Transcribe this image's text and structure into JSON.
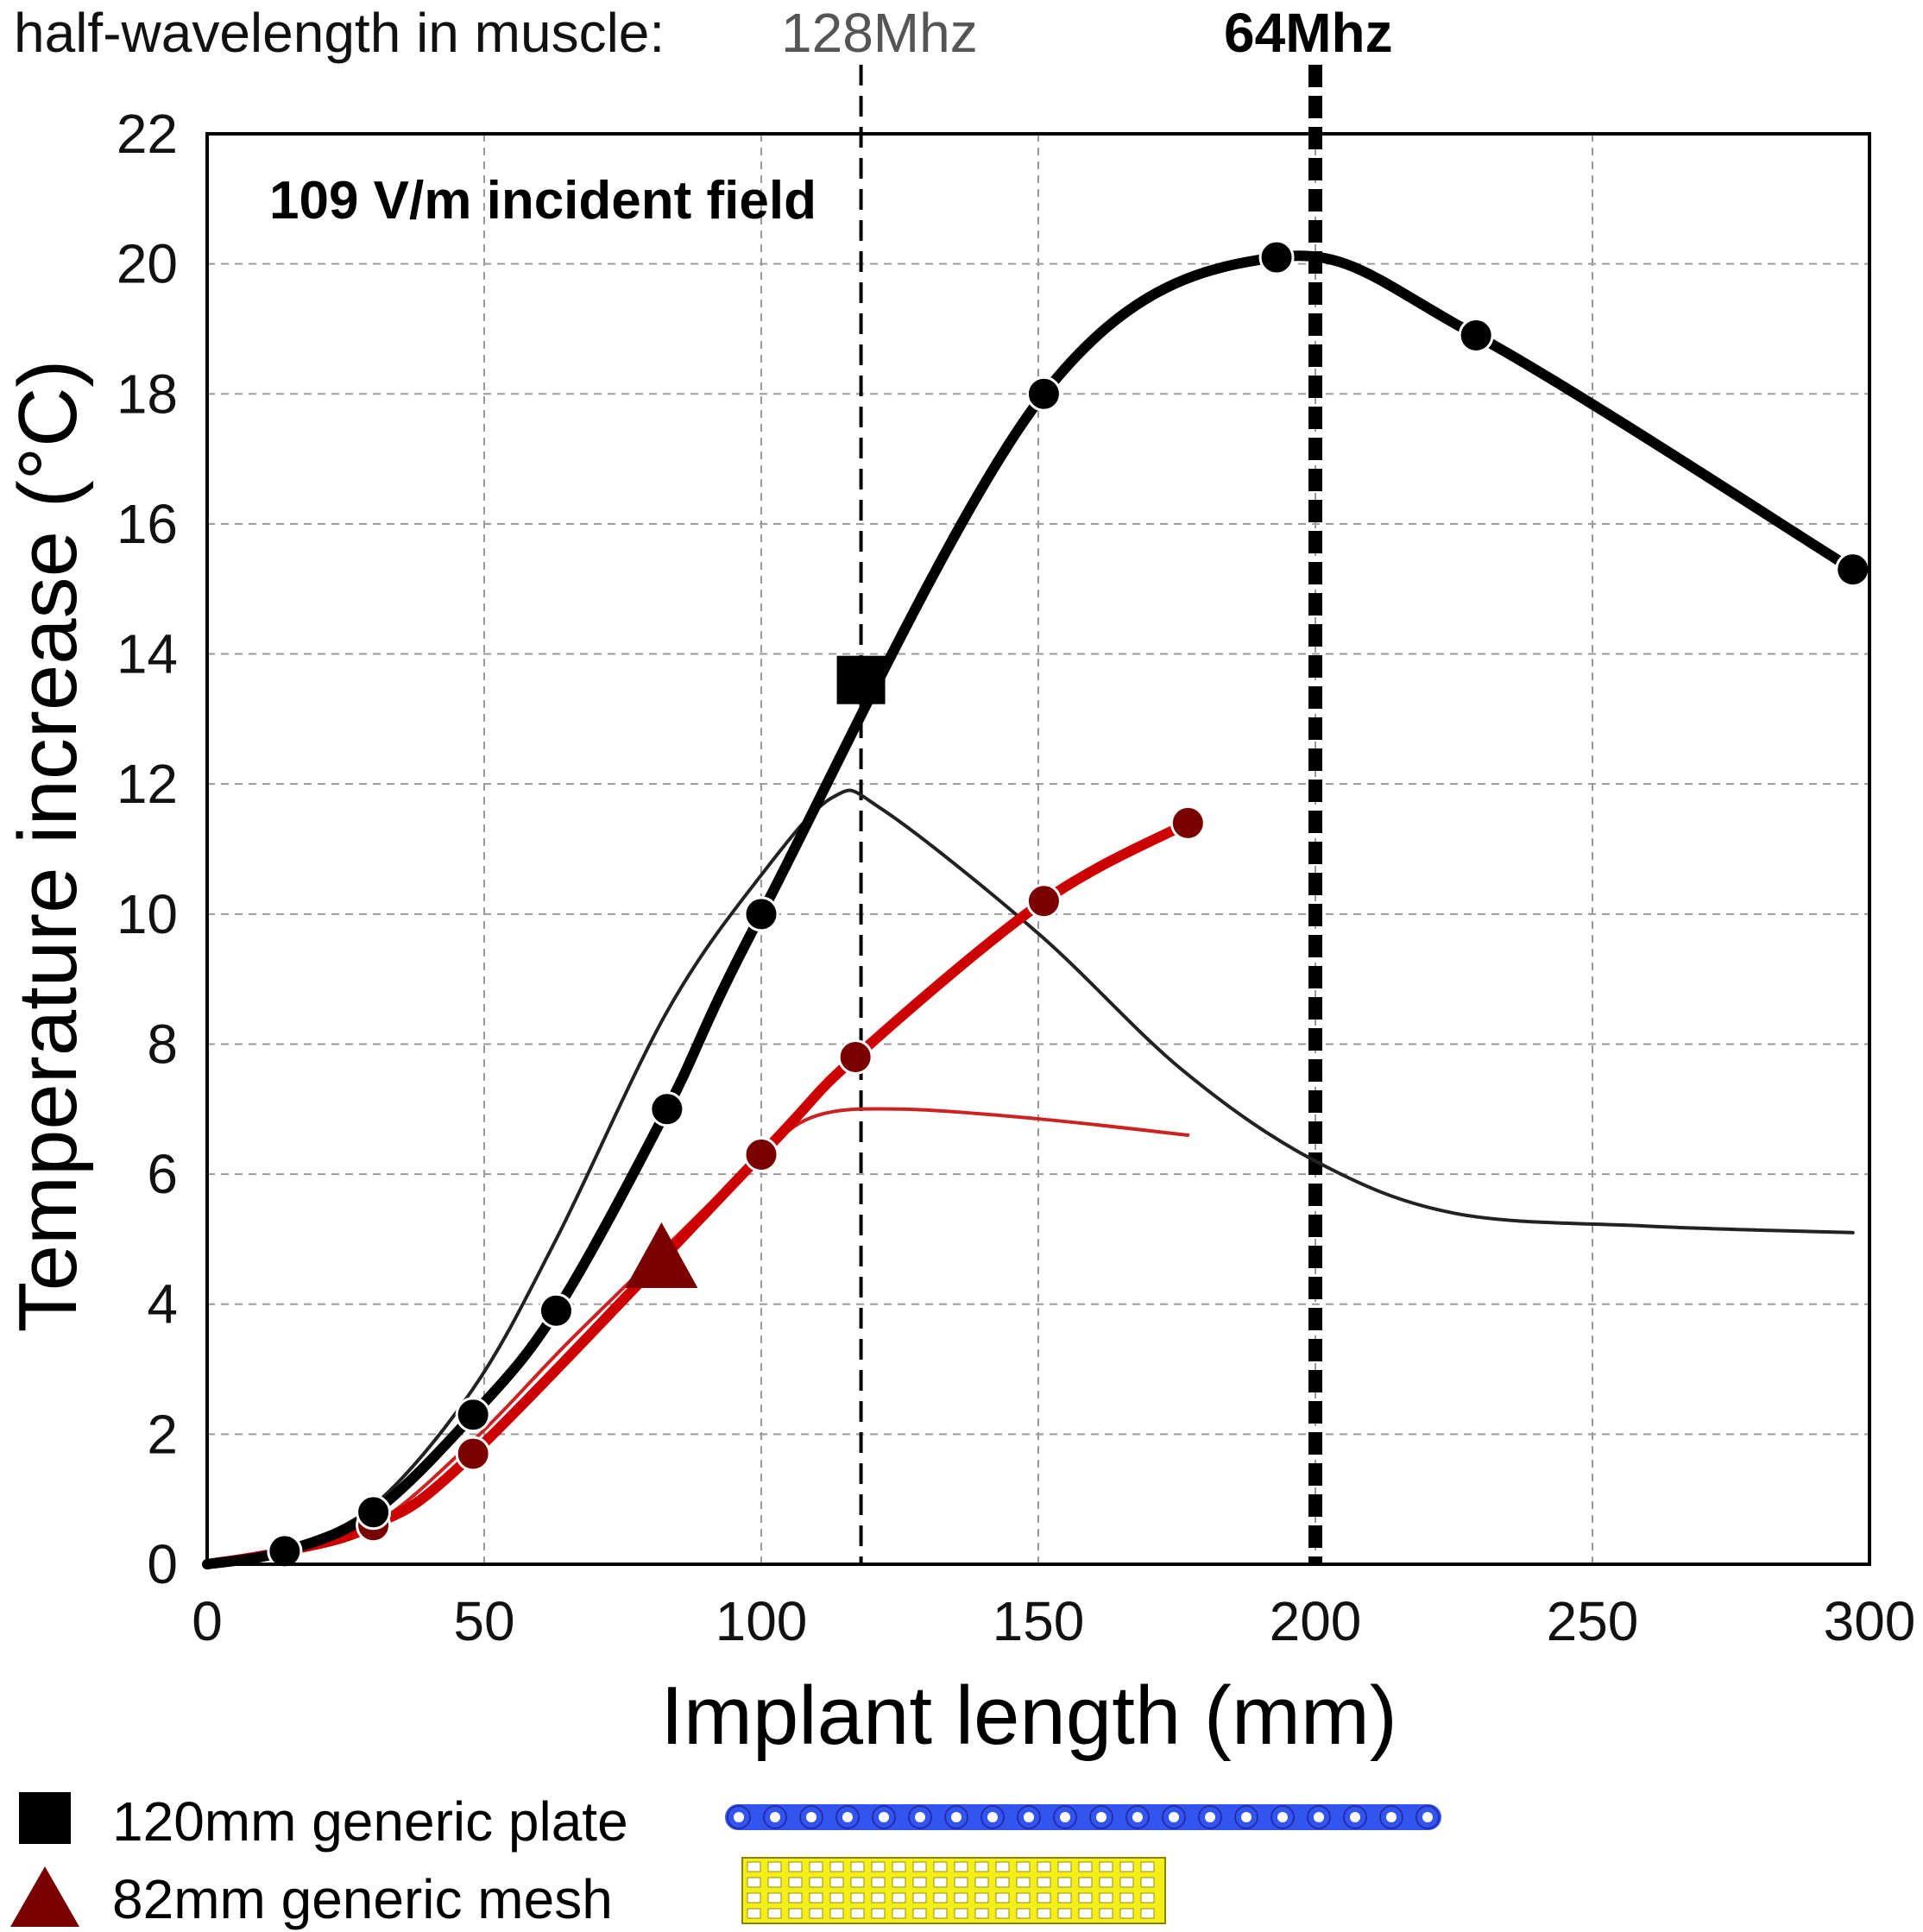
{
  "chart_data": {
    "type": "line",
    "xlabel": "Implant length (mm)",
    "ylabel": "Temperature increase (°C)",
    "xlim": [
      0,
      300
    ],
    "ylim": [
      0,
      22
    ],
    "xticks": [
      0,
      50,
      100,
      150,
      200,
      250,
      300
    ],
    "yticks": [
      0,
      2,
      4,
      6,
      8,
      10,
      12,
      14,
      16,
      18,
      20,
      22
    ],
    "grid": true,
    "annotation": "109 V/m incident field",
    "top_header": {
      "prefix": "half-wavelength in muscle:",
      "label_128": "128Mhz",
      "label_64": "64Mhz"
    },
    "vlines": [
      {
        "x": 118,
        "label": "128Mhz",
        "style": "thin-dashed"
      },
      {
        "x": 200,
        "label": "64Mhz",
        "style": "thick-dashed"
      }
    ],
    "series": [
      {
        "color": "#000000",
        "marker": "circle",
        "line": "thick",
        "x": [
          0,
          14,
          30,
          48,
          63,
          83,
          100,
          151,
          193,
          229,
          297
        ],
        "y": [
          0,
          0.2,
          0.8,
          2.3,
          3.9,
          7.0,
          10.0,
          18.0,
          20.1,
          18.9,
          15.3
        ]
      },
      {
        "color": "#cc0000",
        "marker_color": "#7a0000",
        "marker": "circle",
        "line": "thick",
        "x": [
          0,
          14,
          30,
          48,
          100,
          117,
          151,
          177
        ],
        "y": [
          0,
          0.2,
          0.6,
          1.7,
          6.3,
          7.8,
          10.2,
          11.4
        ]
      },
      {
        "color": "#222222",
        "marker": "none",
        "line": "thin",
        "x": [
          0,
          14,
          30,
          48,
          63,
          83,
          100,
          113,
          122,
          150,
          176,
          200,
          225,
          260,
          297
        ],
        "y": [
          0,
          0.25,
          0.9,
          2.7,
          5.0,
          8.5,
          10.6,
          11.8,
          11.6,
          9.7,
          7.6,
          6.2,
          5.4,
          5.2,
          5.1
        ]
      },
      {
        "color": "#cc2222",
        "marker": "none",
        "line": "thin",
        "x": [
          0,
          14,
          30,
          48,
          65,
          83,
          100,
          110,
          125,
          150,
          177
        ],
        "y": [
          0,
          0.2,
          0.6,
          1.9,
          3.4,
          4.9,
          6.3,
          6.9,
          7.0,
          6.85,
          6.6
        ]
      }
    ],
    "points": [
      {
        "name": "120mm generic plate",
        "shape": "square",
        "color": "#000000",
        "x": 118,
        "y": 13.6
      },
      {
        "name": "82mm generic mesh",
        "shape": "triangle",
        "color": "#7a0000",
        "x": 82,
        "y": 4.7
      }
    ],
    "legend": {
      "placement": "bottom",
      "items": [
        {
          "label": "120mm generic plate",
          "shape": "square",
          "color": "#000000",
          "picture": "plate-chain",
          "picture_color": "#3355ee"
        },
        {
          "label": "82mm generic mesh",
          "shape": "triangle",
          "color": "#7a0000",
          "picture": "mesh-grid",
          "picture_color": "#f4ee1a"
        }
      ]
    }
  }
}
